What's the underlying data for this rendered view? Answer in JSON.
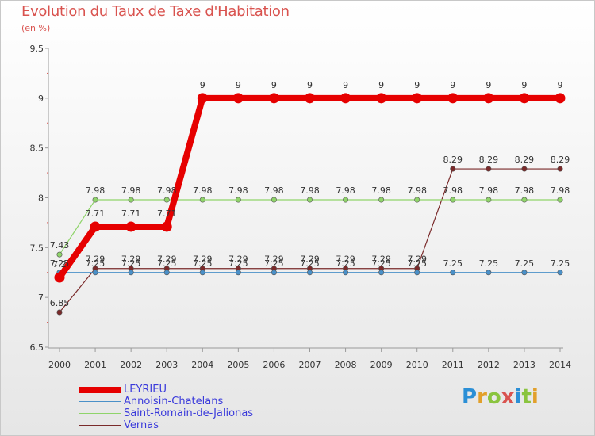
{
  "title": "Evolution du Taux de Taxe d'Habitation",
  "subtitle": "(en %)",
  "logo_text": "Proxiti",
  "chart_data": {
    "type": "line",
    "title": "Evolution du Taux de Taxe d'Habitation",
    "ylabel": "(en %)",
    "xlabel": "",
    "ylim": [
      6.5,
      9.5
    ],
    "yticks": [
      "6.5",
      "7",
      "7.5",
      "8",
      "8.5",
      "9",
      "9.5"
    ],
    "categories": [
      "2000",
      "2001",
      "2002",
      "2003",
      "2004",
      "2005",
      "2006",
      "2007",
      "2008",
      "2009",
      "2010",
      "2011",
      "2012",
      "2013",
      "2014"
    ],
    "series": [
      {
        "name": "Vernas",
        "color": "#7a2a2a",
        "values": [
          6.85,
          7.29,
          7.29,
          7.29,
          7.29,
          7.29,
          7.29,
          7.29,
          7.29,
          7.29,
          7.29,
          8.29,
          8.29,
          8.29,
          8.29
        ],
        "labels": [
          "6.85",
          "7.29",
          "7.29",
          "7.29",
          "7.29",
          "7.29",
          "7.29",
          "7.29",
          "7.29",
          "7.29",
          "7.29",
          "8.29",
          "8.29",
          "8.29",
          "8.29"
        ]
      },
      {
        "name": "Annoisin-Chatelans",
        "color": "#4a90c8",
        "values": [
          7.25,
          7.25,
          7.25,
          7.25,
          7.25,
          7.25,
          7.25,
          7.25,
          7.25,
          7.25,
          7.25,
          7.25,
          7.25,
          7.25,
          7.25
        ],
        "labels": [
          "7.25",
          "7.25",
          "7.25",
          "7.25",
          "7.25",
          "7.25",
          "7.25",
          "7.25",
          "7.25",
          "7.25",
          "7.25",
          "7.25",
          "7.25",
          "7.25",
          "7.25"
        ]
      },
      {
        "name": "Saint-Romain-de-Jalionas",
        "color": "#8fd46a",
        "values": [
          7.43,
          7.98,
          7.98,
          7.98,
          7.98,
          7.98,
          7.98,
          7.98,
          7.98,
          7.98,
          7.98,
          7.98,
          7.98,
          7.98,
          7.98
        ],
        "labels": [
          "7.43",
          "7.98",
          "7.98",
          "7.98",
          "7.98",
          "7.98",
          "7.98",
          "7.98",
          "7.98",
          "7.98",
          "7.98",
          "7.98",
          "7.98",
          "7.98",
          "7.98"
        ]
      },
      {
        "name": "LEYRIEU",
        "color": "#e60000",
        "values": [
          7.2,
          7.71,
          7.71,
          7.71,
          9,
          9,
          9,
          9,
          9,
          9,
          9,
          9,
          9,
          9,
          9
        ],
        "labels": [
          "7.2",
          "7.71",
          "7.71",
          "7.71",
          "9",
          "9",
          "9",
          "9",
          "9",
          "9",
          "9",
          "9",
          "9",
          "9",
          "9"
        ]
      }
    ],
    "legend": [
      "LEYRIEU",
      "Annoisin-Chatelans",
      "Saint-Romain-de-Jalionas",
      "Vernas"
    ],
    "legend_placement": "bottom-left",
    "grid": false
  }
}
